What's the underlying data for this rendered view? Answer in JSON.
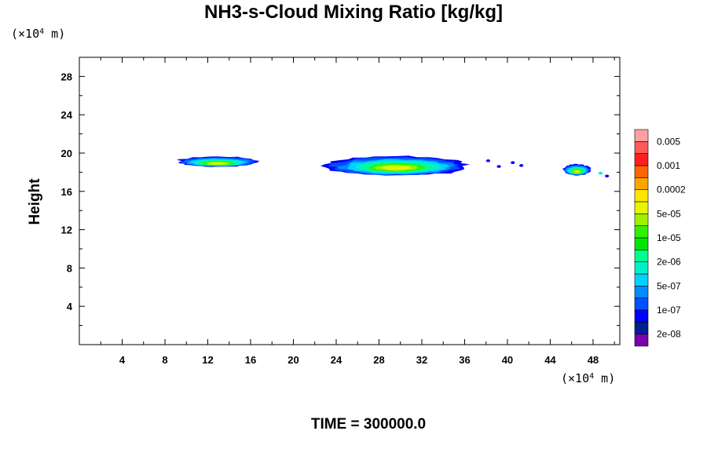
{
  "title": "NH3-s-Cloud Mixing Ratio [kg/kg]",
  "time_label": "TIME = 300000.0",
  "chart_data": {
    "type": "heatmap",
    "title": "NH3-s-Cloud Mixing Ratio [kg/kg]",
    "ylabel": "Height",
    "xlabel": "",
    "x_unit_prefix": "(×10",
    "x_unit_exp": "4",
    "x_unit_suffix": " m)",
    "y_unit_prefix": "(×10",
    "y_unit_exp": "4",
    "y_unit_suffix": " m)",
    "xlim": [
      0,
      50.5
    ],
    "ylim": [
      0,
      30
    ],
    "x_ticks": [
      "4",
      "8",
      "12",
      "16",
      "20",
      "24",
      "28",
      "32",
      "36",
      "40",
      "44",
      "48"
    ],
    "y_ticks": [
      "4",
      "8",
      "12",
      "16",
      "20",
      "24",
      "28"
    ],
    "grid": false,
    "colorbar": {
      "colors": [
        "#7a00b0",
        "#001e96",
        "#0000ff",
        "#0050ff",
        "#008cff",
        "#00d2ff",
        "#00f0c8",
        "#00ff8c",
        "#00e600",
        "#32f000",
        "#a0f000",
        "#e6f500",
        "#ffe600",
        "#ffa500",
        "#ff6400",
        "#ff1e1e",
        "#ff5a5a",
        "#ffa0a0"
      ],
      "labels": [
        "2e-08",
        "1e-07",
        "5e-07",
        "2e-06",
        "1e-05",
        "5e-05",
        "0.0002",
        "0.001",
        "0.005"
      ]
    },
    "cloud_regions": [
      {
        "x_range": [
          9.2,
          16.7
        ],
        "y_range": [
          18.5,
          19.7
        ],
        "peak_level": 10
      },
      {
        "x_range": [
          23.0,
          36.3
        ],
        "y_range": [
          17.5,
          19.8
        ],
        "peak_level": 10
      },
      {
        "x_range": [
          45.2,
          47.8
        ],
        "y_range": [
          17.6,
          18.9
        ],
        "peak_level": 10
      }
    ]
  }
}
